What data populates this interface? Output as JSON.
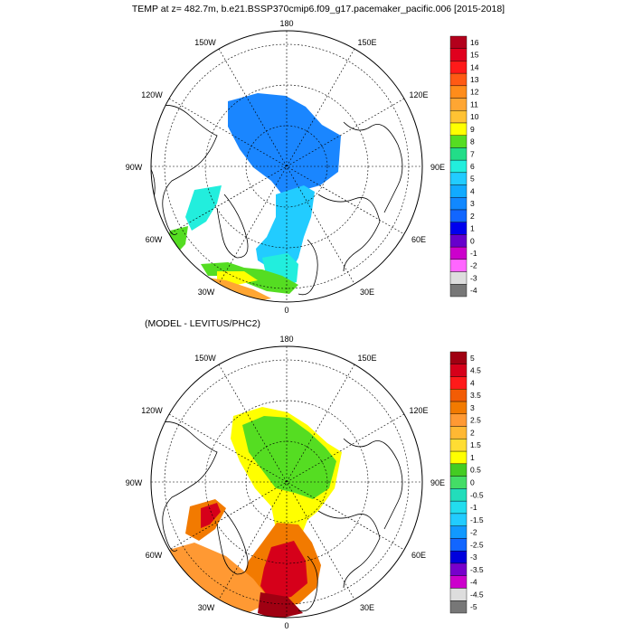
{
  "top_map": {
    "title": "TEMP at z= 482.7m, b.e21.BSSP370cmip6.f09_g17.pacemaker_pacific.006 [2015-2018]",
    "lon_labels": {
      "l180": "180",
      "l150w": "150W",
      "l150e": "150E",
      "l120w": "120W",
      "l120e": "120E",
      "l90w": "90W",
      "l90e": "90E",
      "l60w": "60W",
      "l60e": "60E",
      "l30w": "30W",
      "l30e": "30E",
      "l0": "0"
    },
    "colorbar": {
      "labels": [
        "16",
        "15",
        "14",
        "13",
        "12",
        "11",
        "10",
        "9",
        "8",
        "7",
        "6",
        "5",
        "4",
        "3",
        "2",
        "1",
        "0",
        "-1",
        "-2",
        "-3",
        "-4"
      ],
      "colors": [
        "#b3001c",
        "#e0001e",
        "#ff1a1a",
        "#ff5a14",
        "#ff8c1a",
        "#ffa633",
        "#ffc233",
        "#ffff00",
        "#55dd22",
        "#22dd88",
        "#22eedd",
        "#22ccff",
        "#11aaff",
        "#1188ff",
        "#1166ff",
        "#0000ee",
        "#6600cc",
        "#cc00cc",
        "#ff66ff",
        "#dddddd",
        "#777777"
      ]
    }
  },
  "bottom_map": {
    "title": "(MODEL - LEVITUS/PHC2)",
    "lon_labels": {
      "l180": "180",
      "l150w": "150W",
      "l150e": "150E",
      "l120w": "120W",
      "l120e": "120E",
      "l90w": "90W",
      "l90e": "90E",
      "l60w": "60W",
      "l60e": "60E",
      "l30w": "30W",
      "l30e": "30E",
      "l0": "0"
    },
    "colorbar": {
      "labels": [
        "5",
        "4.5",
        "4",
        "3.5",
        "3",
        "2.5",
        "2",
        "1.5",
        "1",
        "0.5",
        "0",
        "-0.5",
        "-1",
        "-1.5",
        "-2",
        "-2.5",
        "-3",
        "-3.5",
        "-4",
        "-4.5",
        "-5"
      ],
      "colors": [
        "#a00012",
        "#d6001a",
        "#ff1a1a",
        "#f25c05",
        "#f27a00",
        "#ff9933",
        "#ffb833",
        "#ffdd33",
        "#ffff00",
        "#44cc22",
        "#44dd66",
        "#22ddbb",
        "#22ddee",
        "#22ccff",
        "#1199ff",
        "#1166ff",
        "#0000dd",
        "#7700cc",
        "#cc00cc",
        "#dddddd",
        "#777777"
      ]
    }
  }
}
